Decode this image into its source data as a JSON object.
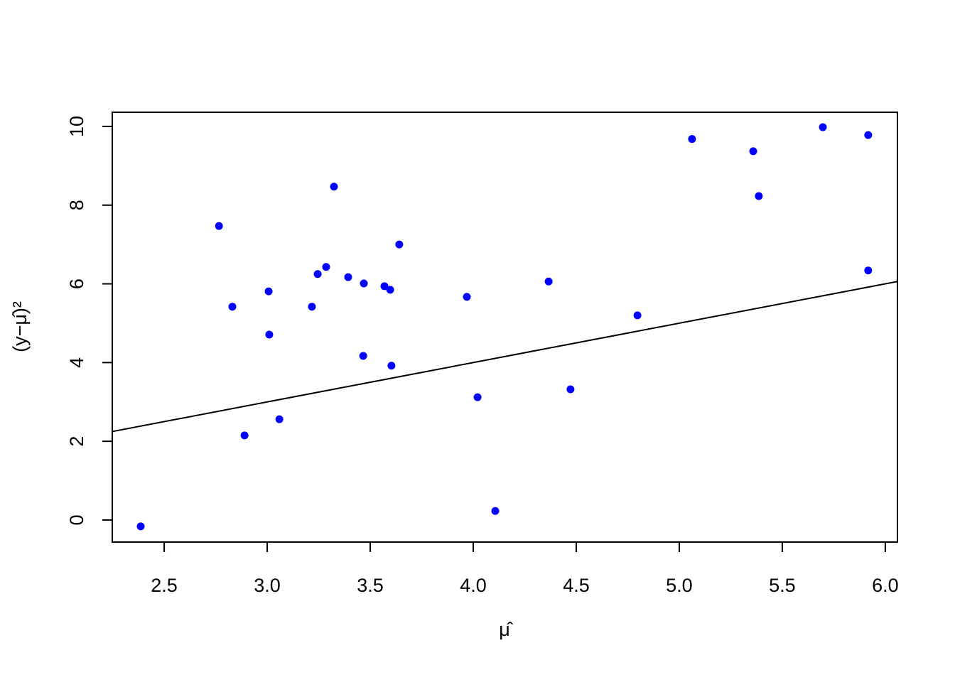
{
  "chart_data": {
    "type": "scatter",
    "xlabel": "μ̂",
    "ylabel": "(y−μ̂)²",
    "series": [
      {
        "color": "#0000ff",
        "x": [
          2.386,
          2.766,
          2.831,
          2.89,
          3.007,
          3.01,
          3.059,
          3.217,
          3.245,
          3.286,
          3.324,
          3.393,
          3.466,
          3.469,
          3.569,
          3.597,
          3.603,
          3.641,
          3.969,
          4.021,
          4.107,
          4.366,
          4.472,
          4.797,
          5.062,
          5.359,
          5.386,
          5.697,
          5.917,
          5.917
        ],
        "values": [
          -0.16,
          7.47,
          5.42,
          2.15,
          5.81,
          4.71,
          2.56,
          5.42,
          6.25,
          6.43,
          8.47,
          6.17,
          4.17,
          6.01,
          5.94,
          5.85,
          3.92,
          7.0,
          5.67,
          3.12,
          0.23,
          6.06,
          3.32,
          5.2,
          9.68,
          9.37,
          8.23,
          9.98,
          9.78,
          6.34
        ]
      }
    ],
    "abline": {
      "intercept": 0,
      "slope": 1,
      "color": "#000000"
    },
    "xlim": [
      2.248,
      6.059
    ],
    "ylim": [
      -0.56,
      10.36
    ],
    "xticks": [
      2.5,
      {
        "value": 3,
        "label": "3.0"
      },
      3.5,
      {
        "value": 4,
        "label": "4.0"
      },
      4.5,
      {
        "value": 5,
        "label": "5.0"
      },
      5.5,
      {
        "value": 6,
        "label": "6.0"
      }
    ],
    "yticks": [
      0,
      2,
      4,
      6,
      8,
      10
    ]
  }
}
